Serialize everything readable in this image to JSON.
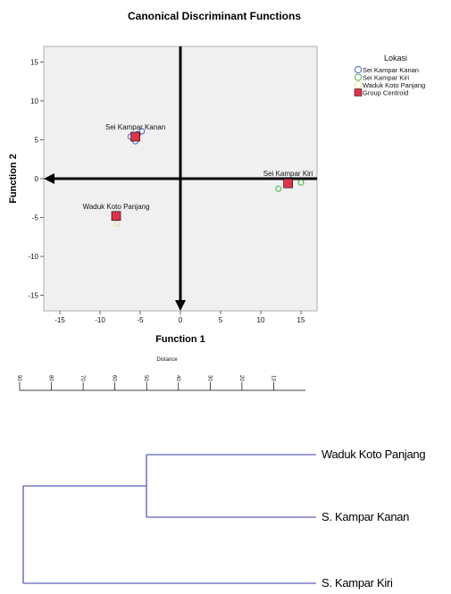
{
  "chart_data": [
    {
      "type": "scatter",
      "title": "Canonical Discriminant Functions",
      "xlabel": "Function 1",
      "ylabel": "Function 2",
      "xlim": [
        -17,
        17
      ],
      "ylim": [
        -17,
        17
      ],
      "xticks": [
        -15,
        -10,
        -5,
        0,
        5,
        10,
        15
      ],
      "yticks": [
        15,
        10,
        5,
        0,
        -5,
        -10,
        -15
      ],
      "legend": {
        "title": "Lokasi",
        "position": "right",
        "entries": [
          {
            "label": "Sei Kampar Kanan",
            "marker": "circle",
            "color": "#3355cc"
          },
          {
            "label": "Sei Kampar Kiri",
            "marker": "circle",
            "color": "#33aa33"
          },
          {
            "label": "Waduk Koto Panjang",
            "marker": "circle",
            "color": "#e8dc96"
          },
          {
            "label": "Group Centroid",
            "marker": "square",
            "color": "#e0334a"
          }
        ]
      },
      "series": [
        {
          "name": "Sei Kampar Kanan",
          "color": "#3355cc",
          "points": [
            [
              -6.2,
              5.4
            ],
            [
              -5.3,
              5.7
            ],
            [
              -4.8,
              6.1
            ],
            [
              -5.6,
              4.8
            ]
          ]
        },
        {
          "name": "Sei Kampar Kiri",
          "color": "#33aa33",
          "points": [
            [
              12.2,
              -1.3
            ],
            [
              13.3,
              -0.4
            ],
            [
              15.0,
              -0.5
            ]
          ]
        },
        {
          "name": "Waduk Koto Panjang",
          "color": "#e8dc96",
          "points": [
            [
              -7.9,
              -5.8
            ]
          ]
        }
      ],
      "centroids": [
        {
          "label": "Sei Kampar Kanan",
          "x": -5.6,
          "y": 5.4
        },
        {
          "label": "Sei Kampar Kiri",
          "x": 13.4,
          "y": -0.6
        },
        {
          "label": "Waduk Koto Panjang",
          "x": -8.0,
          "y": -4.8
        }
      ],
      "arrows": [
        {
          "from": [
            0,
            17
          ],
          "to": [
            0,
            -17
          ]
        },
        {
          "from": [
            17,
            0
          ],
          "to": [
            -17,
            0
          ]
        }
      ]
    },
    {
      "type": "dendrogram",
      "axis_title": "Distance",
      "ticks": [
        90,
        80,
        70,
        60,
        50,
        40,
        30,
        20,
        10
      ],
      "leaves": [
        "Waduk Koto Panjang",
        "S. Kampar Kanan",
        "S. Kampar Kiri"
      ],
      "merges": [
        {
          "a": "Waduk Koto Panjang",
          "b": "S. Kampar Kanan"
        },
        {
          "a": "cluster-1",
          "b": "S. Kampar Kiri"
        }
      ]
    }
  ]
}
